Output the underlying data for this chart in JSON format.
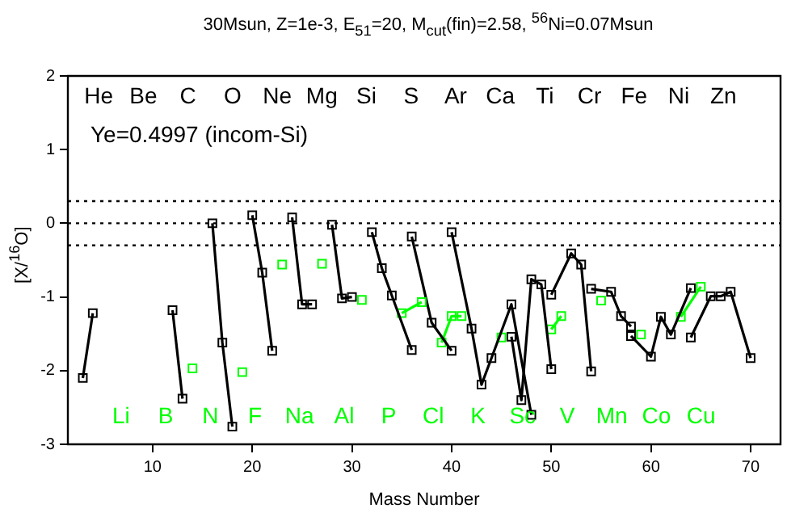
{
  "chart_data": {
    "type": "line",
    "title": "30Msun, Z=1e-3, E$_{51}$=20, M$_{cut}$(fin)=2.58, $^{56}$Ni=0.07Msun",
    "xlabel": "Mass Number",
    "ylabel": "[X/$^{16}$O]",
    "xlim": [
      1.5,
      73
    ],
    "xticks": [
      10,
      20,
      30,
      40,
      50,
      60,
      70
    ],
    "ylim": [
      -3,
      2
    ],
    "yticks": [
      -3,
      -2,
      -1,
      0,
      1,
      2
    ],
    "grid": false,
    "legend": false,
    "marker": "square",
    "line_style": "solid",
    "annotations": [
      "Ye=0.4997 (incom-Si)",
      "He",
      "Li",
      "Be",
      "B",
      "C",
      "N",
      "O",
      "F",
      "Ne",
      "Na",
      "Mg",
      "Al",
      "Si",
      "P",
      "S",
      "Cl",
      "Ar",
      "K",
      "Ca",
      "Sc",
      "Ti",
      "V",
      "Cr",
      "Mn",
      "Fe",
      "Co",
      "Ni",
      "Cu",
      "Zn"
    ],
    "ref_lines": [
      {
        "axis": "y",
        "value": 0.3,
        "line_style": "dotted",
        "color": "#000000"
      },
      {
        "axis": "y",
        "value": 0,
        "line_style": "dotted",
        "color": "#000000"
      },
      {
        "axis": "y",
        "value": -0.3,
        "line_style": "dotted",
        "color": "#000000"
      }
    ],
    "series": [
      {
        "color": "#000000",
        "x": [
          3,
          4
        ],
        "values": [
          -2.1,
          -1.22
        ]
      },
      {
        "color": "#000000",
        "x": [
          12,
          13
        ],
        "values": [
          -1.18,
          -2.38
        ]
      },
      {
        "color": "#00ff00",
        "x": [
          14
        ],
        "values": [
          -1.97
        ]
      },
      {
        "color": "#000000",
        "x": [
          16,
          17,
          18
        ],
        "values": [
          0.0,
          -1.62,
          -2.76
        ]
      },
      {
        "color": "#00ff00",
        "x": [
          19
        ],
        "values": [
          -2.02
        ]
      },
      {
        "color": "#000000",
        "x": [
          20,
          21,
          22
        ],
        "values": [
          0.11,
          -0.67,
          -1.73
        ]
      },
      {
        "color": "#00ff00",
        "x": [
          23
        ],
        "values": [
          -0.56
        ]
      },
      {
        "color": "#000000",
        "x": [
          24,
          25,
          26
        ],
        "values": [
          0.08,
          -1.1,
          -1.1
        ]
      },
      {
        "color": "#00ff00",
        "x": [
          27
        ],
        "values": [
          -0.55
        ]
      },
      {
        "color": "#000000",
        "x": [
          28,
          29,
          30
        ],
        "values": [
          -0.02,
          -1.02,
          -1.0
        ]
      },
      {
        "color": "#00ff00",
        "x": [
          31
        ],
        "values": [
          -1.04
        ]
      },
      {
        "color": "#000000",
        "x": [
          32,
          33,
          34,
          36
        ],
        "values": [
          -0.12,
          -0.61,
          -0.98,
          -1.72
        ]
      },
      {
        "color": "#00ff00",
        "x": [
          35,
          37
        ],
        "values": [
          -1.22,
          -1.07
        ]
      },
      {
        "color": "#000000",
        "x": [
          36,
          38,
          40
        ],
        "values": [
          -0.18,
          -1.35,
          -1.73
        ]
      },
      {
        "color": "#00ff00",
        "x": [
          39,
          40,
          41
        ],
        "values": [
          -1.62,
          -1.26,
          -1.26
        ]
      },
      {
        "color": "#000000",
        "x": [
          40,
          42,
          43,
          44,
          46,
          48
        ],
        "values": [
          -0.12,
          -1.43,
          -2.19,
          -1.83,
          -1.1,
          -2.6
        ]
      },
      {
        "color": "#00ff00",
        "x": [
          45
        ],
        "values": [
          -1.55
        ]
      },
      {
        "color": "#000000",
        "x": [
          46,
          47,
          48,
          49,
          50
        ],
        "values": [
          -1.54,
          -2.4,
          -0.76,
          -0.83,
          -1.98
        ]
      },
      {
        "color": "#00ff00",
        "x": [
          50,
          51
        ],
        "values": [
          -1.44,
          -1.26
        ]
      },
      {
        "color": "#000000",
        "x": [
          50,
          52,
          53,
          54
        ],
        "values": [
          -0.97,
          -0.41,
          -0.56,
          -2.01
        ]
      },
      {
        "color": "#00ff00",
        "x": [
          55
        ],
        "values": [
          -1.05
        ]
      },
      {
        "color": "#000000",
        "x": [
          54,
          56,
          57,
          58
        ],
        "values": [
          -0.89,
          -0.93,
          -1.26,
          -1.4
        ]
      },
      {
        "color": "#00ff00",
        "x": [
          59
        ],
        "values": [
          -1.51
        ]
      },
      {
        "color": "#000000",
        "x": [
          58,
          60,
          61,
          62,
          64
        ],
        "values": [
          -1.53,
          -1.81,
          -1.27,
          -1.51,
          -0.88
        ]
      },
      {
        "color": "#00ff00",
        "x": [
          63,
          65
        ],
        "values": [
          -1.27,
          -0.86
        ]
      },
      {
        "color": "#000000",
        "x": [
          64,
          66,
          67,
          68,
          70
        ],
        "values": [
          -1.55,
          -0.99,
          -0.99,
          -0.93,
          -1.83
        ]
      }
    ]
  }
}
